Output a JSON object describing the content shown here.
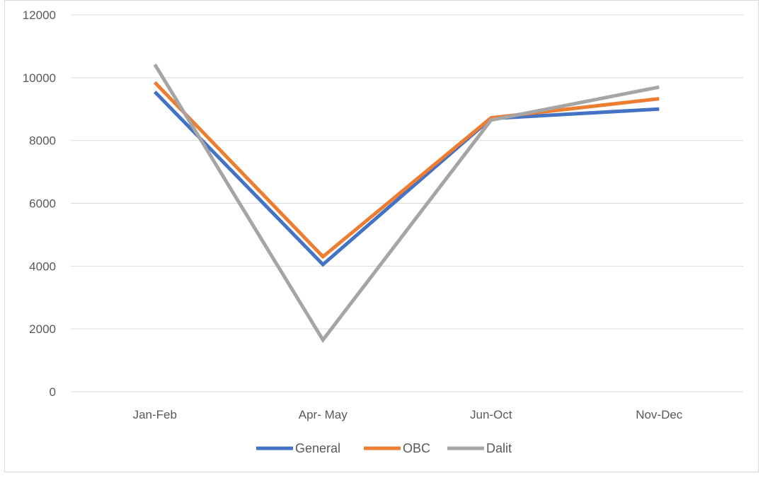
{
  "chart_data": {
    "type": "line",
    "categories": [
      "Jan-Feb",
      "Apr- May",
      "Jun-Oct",
      "Nov-Dec"
    ],
    "series": [
      {
        "name": "General",
        "color": "#4472c4",
        "values": [
          9550,
          4050,
          8700,
          9000
        ]
      },
      {
        "name": "OBC",
        "color": "#ed7d31",
        "values": [
          9850,
          4300,
          8720,
          9330
        ]
      },
      {
        "name": "Dalit",
        "color": "#a5a5a5",
        "values": [
          10420,
          1650,
          8650,
          9700
        ]
      }
    ],
    "title": "",
    "xlabel": "",
    "ylabel": "",
    "ylim": [
      0,
      12000
    ],
    "yticks": [
      "0",
      "2000",
      "4000",
      "6000",
      "8000",
      "10000",
      "12000"
    ],
    "grid": true,
    "legend_position": "bottom"
  }
}
